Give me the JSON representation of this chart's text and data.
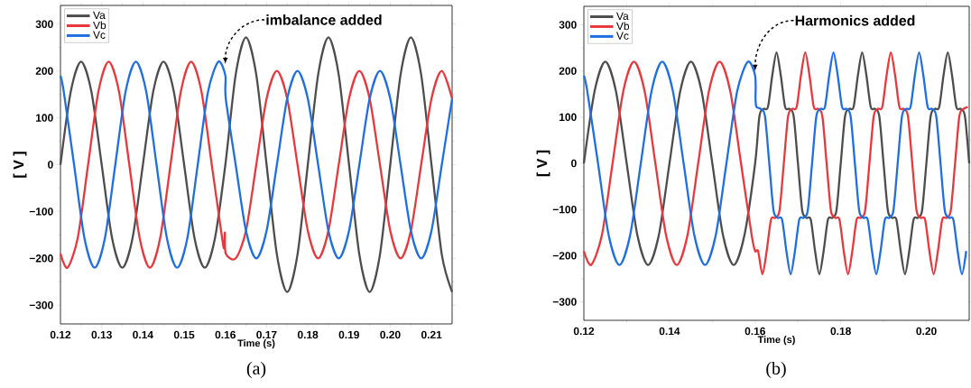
{
  "chart_data": [
    {
      "type": "line",
      "title": "(a)",
      "xlabel": "Time (s)",
      "ylabel": "[ V ]",
      "xlim": [
        0.12,
        0.215
      ],
      "ylim": [
        -340,
        340
      ],
      "xticks": [
        0.12,
        0.13,
        0.14,
        0.15,
        0.16,
        0.17,
        0.18,
        0.19,
        {
          "value": 0.2,
          "label": "0.20"
        },
        0.21
      ],
      "yticks": [
        {
          "value": -300,
          "label": "−300"
        },
        {
          "value": -200,
          "label": "−200"
        },
        {
          "value": -100,
          "label": "−100"
        },
        0,
        100,
        200,
        300
      ],
      "legend": "top left",
      "marker": "none",
      "line_style": "solid",
      "annotations": [
        {
          "text": "imbalance added",
          "x": 0.16,
          "y": 215
        }
      ],
      "series": [
        {
          "name": "Va",
          "color": "#4d4d4d",
          "x": [
            0.12,
            0.1225,
            0.125,
            0.1275,
            0.13,
            0.1325,
            0.135,
            0.1375,
            0.14,
            0.1425,
            0.145,
            0.1475,
            0.15,
            0.1525,
            0.155,
            0.1575,
            0.16,
            0.1625,
            0.165,
            0.1675,
            0.17,
            0.1725,
            0.175,
            0.1775,
            0.18,
            0.1825,
            0.185,
            0.1875,
            0.19,
            0.1925,
            0.195,
            0.1975,
            0.2,
            0.2025,
            0.205,
            0.2075,
            0.21,
            0.2125,
            0.215
          ],
          "values": [
            0,
            156,
            220,
            156,
            0,
            -156,
            -220,
            -156,
            0,
            156,
            220,
            156,
            0,
            -156,
            -220,
            -156,
            0,
            192,
            272,
            192,
            0,
            -192,
            -272,
            -192,
            0,
            192,
            272,
            192,
            0,
            -192,
            -272,
            -192,
            0,
            192,
            272,
            192,
            0,
            -192,
            -272
          ]
        },
        {
          "name": "Vb",
          "color": "#e8383d",
          "x": [
            0.12,
            0.1217,
            0.1242,
            0.1267,
            0.1292,
            0.1317,
            0.1342,
            0.1367,
            0.1392,
            0.1417,
            0.1442,
            0.1467,
            0.1492,
            0.1517,
            0.1542,
            0.1567,
            0.1592,
            0.1597,
            0.1599,
            0.1601,
            0.1625,
            0.165,
            0.1675,
            0.17,
            0.1725,
            0.175,
            0.1775,
            0.18,
            0.1825,
            0.185,
            0.1875,
            0.19,
            0.1925,
            0.195,
            0.1975,
            0.2,
            0.2025,
            0.205,
            0.2075,
            0.21,
            0.2125,
            0.215
          ],
          "values": [
            -190,
            -220,
            -156,
            0,
            156,
            220,
            156,
            0,
            -156,
            -220,
            -156,
            0,
            156,
            220,
            156,
            0,
            -156,
            -178,
            -145,
            -190,
            -200,
            -141,
            0,
            141,
            200,
            141,
            0,
            -141,
            -200,
            -141,
            0,
            141,
            200,
            141,
            0,
            -141,
            -200,
            -141,
            0,
            141,
            200,
            141
          ]
        },
        {
          "name": "Vc",
          "color": "#1f6fe0",
          "x": [
            0.12,
            0.1208,
            0.1233,
            0.1258,
            0.1283,
            0.1308,
            0.1333,
            0.1358,
            0.1383,
            0.1408,
            0.1433,
            0.1458,
            0.1483,
            0.1508,
            0.1533,
            0.1558,
            0.1583,
            0.16,
            0.1601,
            0.1625,
            0.165,
            0.1675,
            0.17,
            0.1725,
            0.175,
            0.1775,
            0.18,
            0.1825,
            0.185,
            0.1875,
            0.19,
            0.1925,
            0.195,
            0.1975,
            0.2,
            0.2025,
            0.205,
            0.2075,
            0.21,
            0.2125,
            0.215
          ],
          "values": [
            190,
            156,
            0,
            -156,
            -220,
            -156,
            0,
            156,
            220,
            156,
            0,
            -156,
            -220,
            -156,
            0,
            156,
            220,
            190,
            141,
            0,
            -141,
            -200,
            -141,
            0,
            141,
            200,
            141,
            0,
            -141,
            -200,
            -141,
            0,
            141,
            200,
            141,
            0,
            -141,
            -200,
            -141,
            0,
            141
          ]
        }
      ]
    },
    {
      "type": "line",
      "title": "(b)",
      "xlabel": "Time (s)",
      "ylabel": "[ V ]",
      "xlim": [
        0.12,
        0.21
      ],
      "ylim": [
        -340,
        340
      ],
      "xticks": [
        0.12,
        0.14,
        0.16,
        0.18,
        {
          "value": 0.2,
          "label": "0.20"
        }
      ],
      "yticks": [
        {
          "value": -300,
          "label": "−300"
        },
        {
          "value": -200,
          "label": "−200"
        },
        {
          "value": -100,
          "label": "−100"
        },
        0,
        100,
        200,
        300
      ],
      "legend": "top left",
      "marker": "none",
      "line_style": "solid",
      "annotations": [
        {
          "text": "Harmonics added",
          "x": 0.16,
          "y": 200
        }
      ],
      "series": [
        {
          "name": "Va",
          "color": "#4d4d4d",
          "x": [
            0.12,
            0.1225,
            0.125,
            0.1275,
            0.13,
            0.1325,
            0.135,
            0.1375,
            0.14,
            0.1425,
            0.145,
            0.1475,
            0.15,
            0.1525,
            0.155,
            0.1575,
            0.16,
            0.161,
            0.162,
            0.163,
            0.164,
            0.165,
            0.166,
            0.167,
            0.168,
            0.169,
            0.17,
            0.171,
            0.172,
            0.173,
            0.174,
            0.175,
            0.176,
            0.177,
            0.178,
            0.179,
            0.18,
            0.181,
            0.182,
            0.183,
            0.184,
            0.185,
            0.186,
            0.187,
            0.188,
            0.189,
            0.19,
            0.191,
            0.192,
            0.193,
            0.194,
            0.195,
            0.196,
            0.197,
            0.198,
            0.199,
            0.2,
            0.201,
            0.202,
            0.203,
            0.204,
            0.205,
            0.206,
            0.207,
            0.208,
            0.209,
            0.21
          ],
          "values": [
            0,
            156,
            220,
            156,
            0,
            -156,
            -220,
            -156,
            0,
            156,
            220,
            156,
            0,
            -156,
            -220,
            -156,
            0,
            102,
            118,
            122,
            190,
            240,
            190,
            122,
            118,
            102,
            0,
            -102,
            -118,
            -122,
            -190,
            -240,
            -190,
            -122,
            -118,
            -102,
            0,
            102,
            118,
            122,
            190,
            240,
            190,
            122,
            118,
            102,
            0,
            -102,
            -118,
            -122,
            -190,
            -240,
            -190,
            -122,
            -118,
            -102,
            0,
            102,
            118,
            122,
            190,
            240,
            190,
            122,
            118,
            102,
            0
          ]
        },
        {
          "name": "Vb",
          "color": "#e8383d",
          "x": [
            0.12,
            0.1217,
            0.1242,
            0.1267,
            0.1292,
            0.1317,
            0.1342,
            0.1367,
            0.1392,
            0.1417,
            0.1442,
            0.1467,
            0.1492,
            0.1517,
            0.1542,
            0.1567,
            0.1592,
            0.16,
            0.1607,
            0.1617,
            0.1627,
            0.1637,
            0.1647,
            0.1657,
            0.1667,
            0.1677,
            0.1687,
            0.1697,
            0.1707,
            0.1717,
            0.1727,
            0.1737,
            0.1747,
            0.1757,
            0.1767,
            0.1777,
            0.1787,
            0.1797,
            0.1807,
            0.1817,
            0.1827,
            0.1837,
            0.1847,
            0.1857,
            0.1867,
            0.1877,
            0.1887,
            0.1897,
            0.1907,
            0.1917,
            0.1927,
            0.1937,
            0.1947,
            0.1957,
            0.1967,
            0.1977,
            0.1987,
            0.1997,
            0.2007,
            0.2017,
            0.2027,
            0.2037,
            0.2047,
            0.2057,
            0.2067,
            0.2077,
            0.2087,
            0.2097
          ],
          "values": [
            -190,
            -220,
            -156,
            0,
            156,
            220,
            156,
            0,
            -156,
            -220,
            -156,
            0,
            156,
            220,
            156,
            0,
            -156,
            -190,
            -190,
            -240,
            -190,
            -122,
            -118,
            -102,
            0,
            102,
            118,
            122,
            190,
            240,
            190,
            122,
            118,
            102,
            0,
            -102,
            -118,
            -122,
            -190,
            -240,
            -190,
            -122,
            -118,
            -102,
            0,
            102,
            118,
            122,
            190,
            240,
            190,
            122,
            118,
            102,
            0,
            -102,
            -118,
            -122,
            -190,
            -240,
            -190,
            -122,
            -118,
            -102,
            0,
            102,
            118,
            122
          ]
        },
        {
          "name": "Vc",
          "color": "#1f6fe0",
          "x": [
            0.12,
            0.1208,
            0.1233,
            0.1258,
            0.1283,
            0.1308,
            0.1333,
            0.1358,
            0.1383,
            0.1408,
            0.1433,
            0.1458,
            0.1483,
            0.1508,
            0.1533,
            0.1558,
            0.1583,
            0.16,
            0.1601,
            0.1603,
            0.1613,
            0.1623,
            0.1633,
            0.1643,
            0.1653,
            0.1663,
            0.1673,
            0.1683,
            0.1693,
            0.1703,
            0.1713,
            0.1723,
            0.1733,
            0.1743,
            0.1753,
            0.1763,
            0.1773,
            0.1783,
            0.1793,
            0.1803,
            0.1813,
            0.1823,
            0.1833,
            0.1843,
            0.1853,
            0.1863,
            0.1873,
            0.1883,
            0.1893,
            0.1903,
            0.1913,
            0.1923,
            0.1933,
            0.1943,
            0.1953,
            0.1963,
            0.1973,
            0.1983,
            0.1993,
            0.2003,
            0.2013,
            0.2023,
            0.2033,
            0.2043,
            0.2053,
            0.2063,
            0.2073,
            0.2083,
            0.2093
          ],
          "values": [
            190,
            156,
            0,
            -156,
            -220,
            -156,
            0,
            156,
            220,
            156,
            0,
            -156,
            -220,
            -156,
            0,
            156,
            220,
            190,
            139,
            122,
            118,
            102,
            0,
            -102,
            -118,
            -122,
            -190,
            -240,
            -190,
            -122,
            -118,
            -102,
            0,
            102,
            118,
            122,
            190,
            240,
            190,
            122,
            118,
            102,
            0,
            -102,
            -118,
            -122,
            -190,
            -240,
            -190,
            -122,
            -118,
            -102,
            0,
            102,
            118,
            122,
            190,
            240,
            190,
            122,
            118,
            102,
            0,
            -102,
            -118,
            -122,
            -190,
            -240,
            -190
          ]
        }
      ]
    }
  ]
}
